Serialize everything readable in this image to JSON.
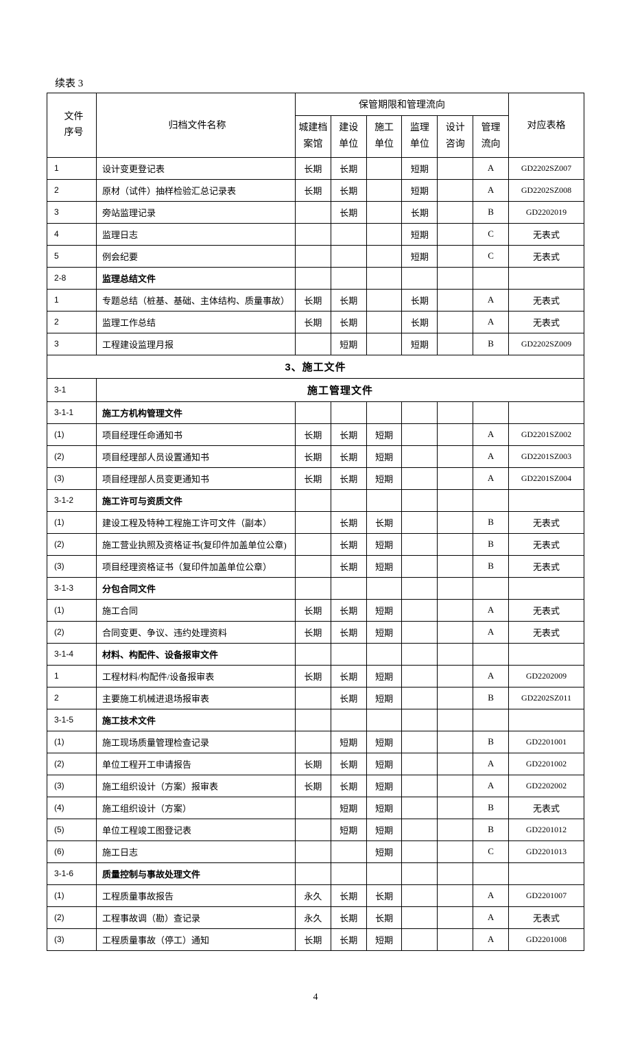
{
  "caption": "续表 3",
  "header": {
    "seq_l1": "文件",
    "seq_l2": "序号",
    "name": "归档文件名称",
    "group": "保管期限和管理流向",
    "cols": {
      "c1_l1": "城建档",
      "c1_l2": "案馆",
      "c2_l1": "建设",
      "c2_l2": "单位",
      "c3_l1": "施工",
      "c3_l2": "单位",
      "c4_l1": "监理",
      "c4_l2": "单位",
      "c5_l1": "设计",
      "c5_l2": "咨询",
      "c6_l1": "管理",
      "c6_l2": "流向"
    },
    "form": "对应表格"
  },
  "rows": [
    {
      "seq": "1",
      "name": "设计变更登记表",
      "c1": "长期",
      "c2": "长期",
      "c3": "",
      "c4": "短期",
      "c5": "",
      "flow": "A",
      "form": "GD2202SZ007"
    },
    {
      "seq": "2",
      "name": "原材（试件）抽样检验汇总记录表",
      "c1": "长期",
      "c2": "长期",
      "c3": "",
      "c4": "短期",
      "c5": "",
      "flow": "A",
      "form": "GD2202SZ008"
    },
    {
      "seq": "3",
      "name": "旁站监理记录",
      "c1": "",
      "c2": "长期",
      "c3": "",
      "c4": "长期",
      "c5": "",
      "flow": "B",
      "form": "GD2202019"
    },
    {
      "seq": "4",
      "name": "监理日志",
      "c1": "",
      "c2": "",
      "c3": "",
      "c4": "短期",
      "c5": "",
      "flow": "C",
      "form": "无表式",
      "formcn": true
    },
    {
      "seq": "5",
      "name": "例会纪要",
      "c1": "",
      "c2": "",
      "c3": "",
      "c4": "短期",
      "c5": "",
      "flow": "C",
      "form": "无表式",
      "formcn": true
    },
    {
      "seq": "2-8",
      "name": "监理总结文件",
      "bold": true,
      "c1": "",
      "c2": "",
      "c3": "",
      "c4": "",
      "c5": "",
      "flow": "",
      "form": ""
    },
    {
      "seq": "1",
      "name": "专题总结（桩基、基础、主体结构、质量事故）",
      "c1": "长期",
      "c2": "长期",
      "c3": "",
      "c4": "长期",
      "c5": "",
      "flow": "A",
      "form": "无表式",
      "formcn": true
    },
    {
      "seq": "2",
      "name": "监理工作总结",
      "c1": "长期",
      "c2": "长期",
      "c3": "",
      "c4": "长期",
      "c5": "",
      "flow": "A",
      "form": "无表式",
      "formcn": true
    },
    {
      "seq": "3",
      "name": "工程建设监理月报",
      "c1": "",
      "c2": "短期",
      "c3": "",
      "c4": "短期",
      "c5": "",
      "flow": "B",
      "form": "GD2202SZ009"
    },
    {
      "section": "3、施工文件"
    },
    {
      "seq": "3-1",
      "subsection": "施工管理文件"
    },
    {
      "seq": "3-1-1",
      "name": "施工方机构管理文件",
      "bold": true,
      "c1": "",
      "c2": "",
      "c3": "",
      "c4": "",
      "c5": "",
      "flow": "",
      "form": ""
    },
    {
      "seq": "(1)",
      "name": "项目经理任命通知书",
      "c1": "长期",
      "c2": "长期",
      "c3": "短期",
      "c4": "",
      "c5": "",
      "flow": "A",
      "form": "GD2201SZ002"
    },
    {
      "seq": "(2)",
      "name": "项目经理部人员设置通知书",
      "c1": "长期",
      "c2": "长期",
      "c3": "短期",
      "c4": "",
      "c5": "",
      "flow": "A",
      "form": "GD2201SZ003"
    },
    {
      "seq": "(3)",
      "name": "项目经理部人员变更通知书",
      "c1": "长期",
      "c2": "长期",
      "c3": "短期",
      "c4": "",
      "c5": "",
      "flow": "A",
      "form": "GD2201SZ004"
    },
    {
      "seq": "3-1-2",
      "name": "施工许可与资质文件",
      "bold": true,
      "c1": "",
      "c2": "",
      "c3": "",
      "c4": "",
      "c5": "",
      "flow": "",
      "form": ""
    },
    {
      "seq": "(1)",
      "name": "建设工程及特种工程施工许可文件（副本）",
      "c1": "",
      "c2": "长期",
      "c3": "长期",
      "c4": "",
      "c5": "",
      "flow": "B",
      "form": "无表式",
      "formcn": true
    },
    {
      "seq": "(2)",
      "name": "施工营业执照及资格证书(复印件加盖单位公章)",
      "c1": "",
      "c2": "长期",
      "c3": "短期",
      "c4": "",
      "c5": "",
      "flow": "B",
      "form": "无表式",
      "formcn": true
    },
    {
      "seq": "(3)",
      "name": "项目经理资格证书（复印件加盖单位公章）",
      "c1": "",
      "c2": "长期",
      "c3": "短期",
      "c4": "",
      "c5": "",
      "flow": "B",
      "form": "无表式",
      "formcn": true
    },
    {
      "seq": "3-1-3",
      "name": "分包合同文件",
      "bold": true,
      "c1": "",
      "c2": "",
      "c3": "",
      "c4": "",
      "c5": "",
      "flow": "",
      "form": ""
    },
    {
      "seq": "(1)",
      "name": "施工合同",
      "c1": "长期",
      "c2": "长期",
      "c3": "短期",
      "c4": "",
      "c5": "",
      "flow": "A",
      "form": "无表式",
      "formcn": true
    },
    {
      "seq": "(2)",
      "name": "合同变更、争议、违约处理资料",
      "c1": "长期",
      "c2": "长期",
      "c3": "短期",
      "c4": "",
      "c5": "",
      "flow": "A",
      "form": "无表式",
      "formcn": true
    },
    {
      "seq": "3-1-4",
      "name": "材料、构配件、设备报审文件",
      "bold": true,
      "c1": "",
      "c2": "",
      "c3": "",
      "c4": "",
      "c5": "",
      "flow": "",
      "form": ""
    },
    {
      "seq": "1",
      "name": "工程材料/构配件/设备报审表",
      "c1": "长期",
      "c2": "长期",
      "c3": "短期",
      "c4": "",
      "c5": "",
      "flow": "A",
      "form": "GD2202009"
    },
    {
      "seq": "2",
      "name": "主要施工机械进退场报审表",
      "c1": "",
      "c2": "长期",
      "c3": "短期",
      "c4": "",
      "c5": "",
      "flow": "B",
      "form": "GD2202SZ011"
    },
    {
      "seq": "3-1-5",
      "name": "施工技术文件",
      "bold": true,
      "c1": "",
      "c2": "",
      "c3": "",
      "c4": "",
      "c5": "",
      "flow": "",
      "form": ""
    },
    {
      "seq": "(1)",
      "name": "施工现场质量管理检查记录",
      "c1": "",
      "c2": "短期",
      "c3": "短期",
      "c4": "",
      "c5": "",
      "flow": "B",
      "form": "GD2201001"
    },
    {
      "seq": "(2)",
      "name": "单位工程开工申请报告",
      "c1": "长期",
      "c2": "长期",
      "c3": "短期",
      "c4": "",
      "c5": "",
      "flow": "A",
      "form": "GD2201002"
    },
    {
      "seq": "(3)",
      "name": "施工组织设计（方案）报审表",
      "c1": "长期",
      "c2": "长期",
      "c3": "短期",
      "c4": "",
      "c5": "",
      "flow": "A",
      "form": "GD2202002"
    },
    {
      "seq": "(4)",
      "name": "施工组织设计（方案）",
      "c1": "",
      "c2": "短期",
      "c3": "短期",
      "c4": "",
      "c5": "",
      "flow": "B",
      "form": "无表式",
      "formcn": true
    },
    {
      "seq": "(5)",
      "name": "单位工程竣工图登记表",
      "c1": "",
      "c2": "短期",
      "c3": "短期",
      "c4": "",
      "c5": "",
      "flow": "B",
      "form": "GD2201012"
    },
    {
      "seq": "(6)",
      "name": "施工日志",
      "c1": "",
      "c2": "",
      "c3": "短期",
      "c4": "",
      "c5": "",
      "flow": "C",
      "form": "GD2201013"
    },
    {
      "seq": "3-1-6",
      "name": "质量控制与事故处理文件",
      "bold": true,
      "c1": "",
      "c2": "",
      "c3": "",
      "c4": "",
      "c5": "",
      "flow": "",
      "form": ""
    },
    {
      "seq": "(1)",
      "name": "工程质量事故报告",
      "c1": "永久",
      "c2": "长期",
      "c3": "长期",
      "c4": "",
      "c5": "",
      "flow": "A",
      "form": "GD2201007"
    },
    {
      "seq": "(2)",
      "name": "工程事故调（勘）查记录",
      "c1": "永久",
      "c2": "长期",
      "c3": "长期",
      "c4": "",
      "c5": "",
      "flow": "A",
      "form": "无表式",
      "formcn": true
    },
    {
      "seq": "(3)",
      "name": "工程质量事故（停工）通知",
      "c1": "长期",
      "c2": "长期",
      "c3": "短期",
      "c4": "",
      "c5": "",
      "flow": "A",
      "form": "GD2201008"
    }
  ],
  "page_number": "4"
}
